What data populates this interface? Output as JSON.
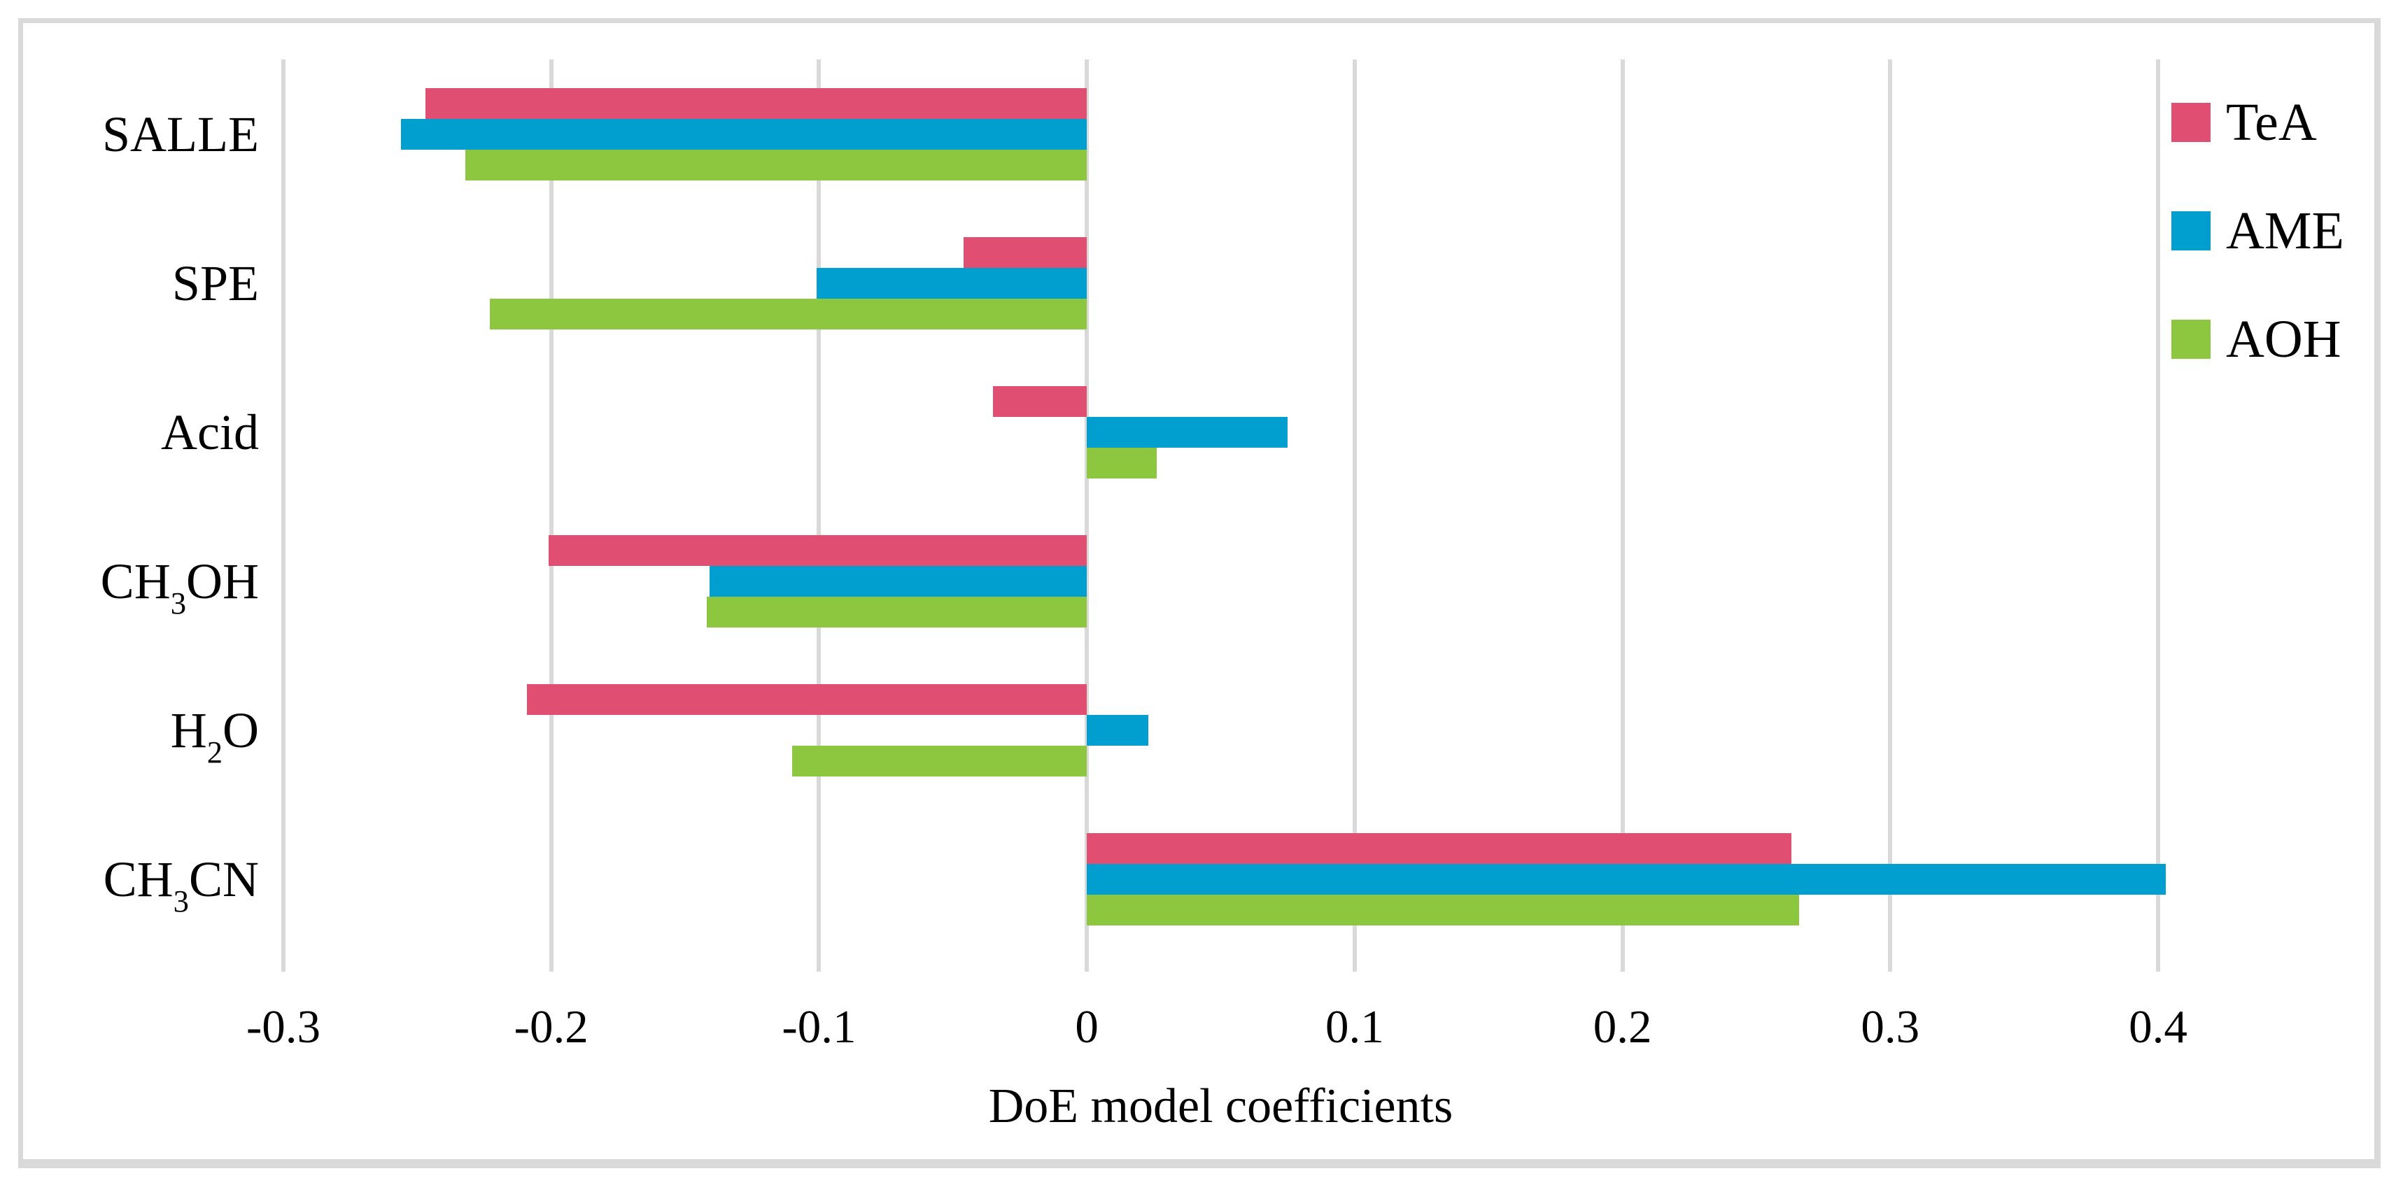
{
  "figure": {
    "background": "#ffffff",
    "frame_border_color": "#d9d9d9",
    "gridline_color": "#d9d9d9"
  },
  "chart_data": {
    "type": "bar",
    "orientation": "horizontal",
    "title": "",
    "xlabel": "DoE model coefficients",
    "ylabel": "",
    "xlim": [
      -0.3,
      0.4
    ],
    "xticks": [
      -0.3,
      -0.2,
      -0.1,
      0,
      0.1,
      0.2,
      0.3,
      0.4
    ],
    "xtick_labels": [
      "-0.3",
      "-0.2",
      "-0.1",
      "0",
      "0.1",
      "0.2",
      "0.3",
      "0.4"
    ],
    "grid": true,
    "legend_position": "top-right",
    "categories": [
      "SALLE",
      "SPE",
      "Acid",
      "CH₃OH",
      "H₂O",
      "CH₃CN"
    ],
    "series": [
      {
        "name": "TeA",
        "color": "#e04e72",
        "values": [
          -0.247,
          -0.046,
          -0.035,
          -0.201,
          -0.209,
          0.263
        ]
      },
      {
        "name": "AME",
        "color": "#009fd0",
        "values": [
          -0.256,
          -0.101,
          0.075,
          -0.141,
          0.023,
          0.403
        ]
      },
      {
        "name": "AOH",
        "color": "#8dc63f",
        "values": [
          -0.232,
          -0.223,
          0.026,
          -0.142,
          -0.11,
          0.266
        ]
      }
    ]
  }
}
